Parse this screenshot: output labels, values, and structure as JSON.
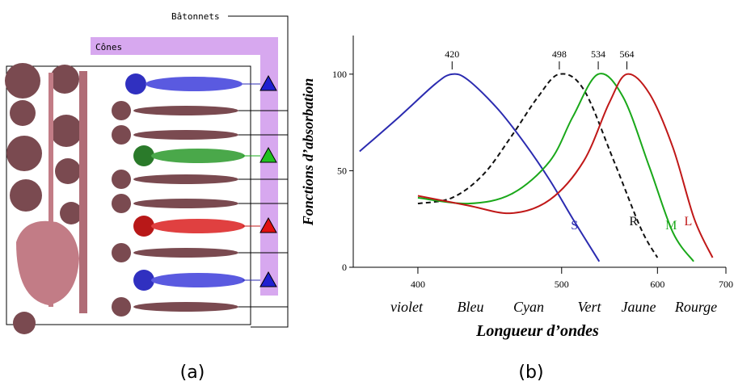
{
  "diagram": {
    "rods_label": "Bâtonnets",
    "cones_label": "Cônes"
  },
  "chart_data": {
    "type": "line",
    "xscale": "reciprocal",
    "xlabel": "Longueur d’ondes",
    "ylabel": "Fonctions d’absorbation",
    "xlim": [
      367,
      700
    ],
    "ylim": [
      0,
      120
    ],
    "xticks": [
      400,
      500,
      600,
      700
    ],
    "yticks": [
      0,
      50,
      100
    ],
    "peaks": [
      420,
      498,
      534,
      564
    ],
    "color_names": [
      "violet",
      "Bleu",
      "Cyan",
      "Vert",
      "Jaune",
      "Rourge"
    ],
    "series": [
      {
        "name": "S",
        "color": "#2b2bb0",
        "dash": false,
        "x": [
          370,
          390,
          410,
          420,
          430,
          450,
          470,
          490,
          510,
          535
        ],
        "values": [
          60,
          78,
          95,
          100,
          97,
          82,
          64,
          45,
          25,
          3
        ]
      },
      {
        "name": "R",
        "color": "#111111",
        "dash": true,
        "x": [
          400,
          420,
          440,
          460,
          480,
          498,
          520,
          550,
          580,
          600
        ],
        "values": [
          33,
          36,
          48,
          68,
          88,
          100,
          92,
          55,
          20,
          5
        ]
      },
      {
        "name": "M",
        "color": "#1aa81a",
        "dash": false,
        "x": [
          400,
          430,
          460,
          490,
          510,
          534,
          560,
          590,
          620,
          649
        ],
        "values": [
          36,
          33,
          38,
          55,
          78,
          100,
          88,
          52,
          18,
          3
        ]
      },
      {
        "name": "L",
        "color": "#c01818",
        "dash": false,
        "x": [
          400,
          430,
          460,
          490,
          520,
          545,
          564,
          590,
          620,
          650,
          678
        ],
        "values": [
          37,
          32,
          28,
          35,
          55,
          85,
          100,
          90,
          62,
          25,
          5
        ]
      }
    ]
  },
  "captions": [
    "(a)",
    "(b)"
  ]
}
